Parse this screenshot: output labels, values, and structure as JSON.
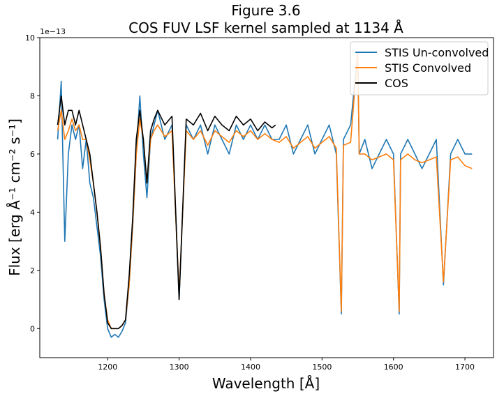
{
  "chart_data": {
    "type": "line",
    "title": "Figure 3.6",
    "subtitle": "COS FUV LSF kernel sampled at 1134 Å",
    "xlabel": "Wavelength [Å]",
    "ylabel": "Flux [erg Å⁻¹ cm⁻² s⁻¹]",
    "y_multiplier_label": "1e−13",
    "xlim": [
      1105,
      1740
    ],
    "ylim": [
      -1,
      10
    ],
    "x_ticks": [
      1200,
      1300,
      1400,
      1500,
      1600,
      1700
    ],
    "y_ticks": [
      0,
      2,
      4,
      6,
      8,
      10
    ],
    "grid": false,
    "legend_position": "top-right",
    "colors": {
      "stis_unconvolved": "#1f77b4",
      "stis_convolved": "#ff7f0e",
      "cos": "#000000"
    },
    "series": [
      {
        "name": "STIS Un-convolved",
        "color": "#1f77b4",
        "x": [
          1130,
          1135,
          1140,
          1145,
          1150,
          1155,
          1160,
          1165,
          1170,
          1175,
          1180,
          1185,
          1190,
          1195,
          1200,
          1205,
          1210,
          1215,
          1220,
          1225,
          1230,
          1235,
          1240,
          1245,
          1250,
          1255,
          1260,
          1265,
          1270,
          1280,
          1290,
          1300,
          1310,
          1320,
          1330,
          1340,
          1350,
          1360,
          1370,
          1380,
          1390,
          1400,
          1410,
          1420,
          1430,
          1440,
          1450,
          1460,
          1470,
          1480,
          1490,
          1500,
          1510,
          1520,
          1527,
          1530,
          1540,
          1550,
          1552,
          1560,
          1570,
          1580,
          1590,
          1600,
          1608,
          1610,
          1620,
          1630,
          1640,
          1650,
          1660,
          1670,
          1680,
          1690,
          1700,
          1710
        ],
        "y": [
          6.5,
          8.5,
          3.0,
          6.0,
          7.0,
          6.5,
          7.0,
          5.5,
          6.5,
          5.0,
          4.5,
          3.5,
          2.5,
          1.0,
          0.0,
          -0.3,
          -0.2,
          -0.3,
          -0.1,
          0.2,
          1.5,
          3.5,
          6.0,
          8.0,
          6.0,
          4.5,
          6.5,
          7.0,
          7.5,
          6.5,
          7.0,
          1.0,
          7.0,
          6.5,
          7.0,
          6.0,
          7.0,
          6.5,
          6.0,
          7.0,
          6.5,
          7.0,
          6.5,
          7.0,
          6.5,
          6.5,
          7.0,
          6.0,
          6.5,
          7.0,
          6.0,
          6.5,
          7.0,
          6.0,
          0.5,
          6.5,
          7.0,
          9.5,
          6.0,
          6.5,
          5.5,
          6.0,
          6.5,
          6.0,
          0.5,
          6.0,
          6.5,
          6.0,
          5.5,
          6.0,
          6.5,
          1.5,
          6.0,
          6.5,
          6.0,
          6.0
        ]
      },
      {
        "name": "STIS Convolved",
        "color": "#ff7f0e",
        "x": [
          1130,
          1135,
          1140,
          1145,
          1150,
          1155,
          1160,
          1165,
          1170,
          1175,
          1180,
          1185,
          1190,
          1195,
          1200,
          1205,
          1210,
          1215,
          1220,
          1225,
          1230,
          1235,
          1240,
          1245,
          1250,
          1255,
          1260,
          1265,
          1270,
          1280,
          1290,
          1300,
          1310,
          1320,
          1330,
          1340,
          1350,
          1360,
          1370,
          1380,
          1390,
          1400,
          1410,
          1420,
          1430,
          1440,
          1450,
          1460,
          1470,
          1480,
          1490,
          1500,
          1510,
          1520,
          1527,
          1530,
          1540,
          1550,
          1552,
          1560,
          1570,
          1580,
          1590,
          1600,
          1608,
          1610,
          1620,
          1630,
          1640,
          1650,
          1660,
          1670,
          1680,
          1690,
          1700,
          1710
        ],
        "y": [
          6.8,
          7.5,
          6.5,
          6.8,
          7.2,
          6.8,
          7.0,
          6.5,
          6.5,
          5.8,
          5.0,
          4.0,
          2.8,
          1.2,
          0.3,
          0.0,
          0.0,
          0.0,
          0.1,
          0.3,
          1.5,
          3.6,
          6.0,
          7.2,
          6.5,
          5.0,
          6.5,
          6.8,
          7.0,
          6.6,
          6.8,
          1.2,
          6.8,
          6.5,
          6.8,
          6.3,
          6.8,
          6.6,
          6.4,
          6.8,
          6.6,
          6.8,
          6.5,
          6.7,
          6.5,
          6.4,
          6.6,
          6.2,
          6.4,
          6.6,
          6.2,
          6.4,
          6.6,
          6.2,
          0.6,
          6.3,
          6.4,
          9.5,
          6.0,
          6.0,
          5.8,
          5.9,
          6.0,
          5.8,
          0.6,
          5.8,
          6.0,
          5.8,
          5.7,
          5.8,
          5.9,
          1.6,
          5.8,
          5.9,
          5.6,
          5.5
        ]
      },
      {
        "name": "COS",
        "color": "#000000",
        "x": [
          1130,
          1135,
          1140,
          1145,
          1150,
          1155,
          1160,
          1165,
          1170,
          1175,
          1180,
          1185,
          1190,
          1195,
          1200,
          1205,
          1210,
          1215,
          1220,
          1225,
          1230,
          1235,
          1240,
          1245,
          1250,
          1255,
          1260,
          1265,
          1270,
          1280,
          1290,
          1300,
          1310,
          1320,
          1330,
          1340,
          1350,
          1360,
          1370,
          1380,
          1390,
          1400,
          1410,
          1420,
          1430,
          1435
        ],
        "y": [
          7.0,
          8.0,
          7.0,
          7.5,
          7.5,
          7.0,
          7.5,
          7.0,
          6.5,
          6.0,
          5.0,
          4.0,
          2.8,
          1.2,
          0.2,
          0.0,
          0.0,
          0.0,
          0.1,
          0.3,
          1.8,
          3.8,
          6.5,
          7.5,
          6.5,
          5.0,
          6.8,
          7.2,
          7.5,
          7.0,
          7.3,
          1.0,
          7.2,
          7.0,
          7.4,
          6.8,
          7.3,
          7.0,
          6.8,
          7.3,
          7.0,
          7.2,
          6.8,
          7.1,
          6.9,
          7.0
        ]
      }
    ]
  }
}
